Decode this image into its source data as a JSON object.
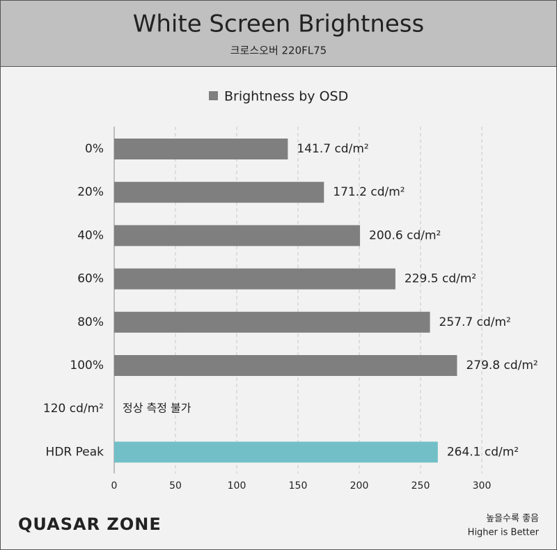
{
  "chart_data": {
    "type": "barh",
    "title": "White Screen Brightness",
    "subtitle": "크로스오버 220FL75",
    "categories": [
      "0%",
      "20%",
      "40%",
      "60%",
      "80%",
      "100%",
      "120 cd/m²",
      "HDR Peak"
    ],
    "series": [
      {
        "name": "Brightness by OSD",
        "color": "#7f7f7f",
        "values": [
          141.7,
          171.2,
          200.6,
          229.5,
          257.7,
          279.8,
          null,
          264.1
        ],
        "value_labels": [
          "141.7 cd/m²",
          "171.2 cd/m²",
          "200.6 cd/m²",
          "229.5 cd/m²",
          "257.7 cd/m²",
          "279.8 cd/m²",
          null,
          "264.1 cd/m²"
        ],
        "colors": [
          "#7f7f7f",
          "#7f7f7f",
          "#7f7f7f",
          "#7f7f7f",
          "#7f7f7f",
          "#7f7f7f",
          null,
          "#72bfc7"
        ]
      }
    ],
    "annotations": [
      {
        "text": "정상 측정 불가",
        "category": "120 cd/m²"
      }
    ],
    "xlim": [
      0,
      300
    ],
    "xticks": [
      0,
      50,
      100,
      150,
      200,
      250,
      300
    ],
    "grid": true,
    "legend": "top",
    "footer": {
      "logo": "QUASAR ZONE",
      "note": "높을수록 좋음",
      "note_en": "Higher is Better"
    }
  }
}
